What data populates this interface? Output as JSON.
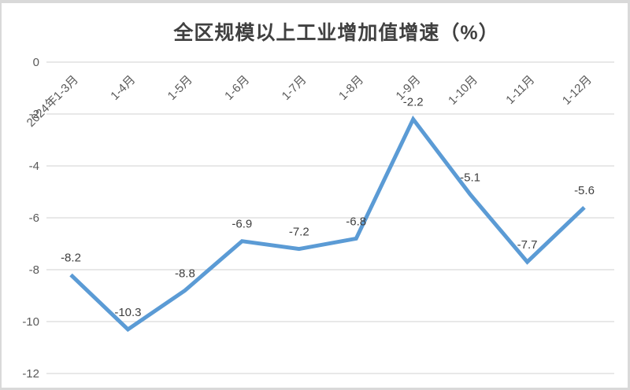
{
  "chart_data": {
    "type": "line",
    "title": "全区规模以上工业增加值增速（%）",
    "categories": [
      "2024年1-3月",
      "1-4月",
      "1-5月",
      "1-6月",
      "1-7月",
      "1-8月",
      "1-9月",
      "1-10月",
      "1-11月",
      "1-12月"
    ],
    "series": [
      {
        "name": "全区规模以上工业增加值增速",
        "values": [
          -8.2,
          -10.3,
          -8.8,
          -6.9,
          -7.2,
          -6.8,
          -2.2,
          -5.1,
          -7.7,
          -5.6
        ]
      }
    ],
    "xlabel": "",
    "ylabel": "",
    "ylim": [
      -12,
      0
    ],
    "yticks": [
      0,
      -2,
      -4,
      -6,
      -8,
      -10,
      -12
    ],
    "grid": true,
    "legend_position": "none",
    "x_label_rotation_deg": -45,
    "data_labels_shown": true,
    "colors": {
      "line": "#5b9bd5",
      "gridline": "#d9d9d9",
      "axis_label": "#595959",
      "data_label": "#404040",
      "title": "#404040",
      "frame_border": "#d9d9d9",
      "background": "#ffffff"
    }
  }
}
